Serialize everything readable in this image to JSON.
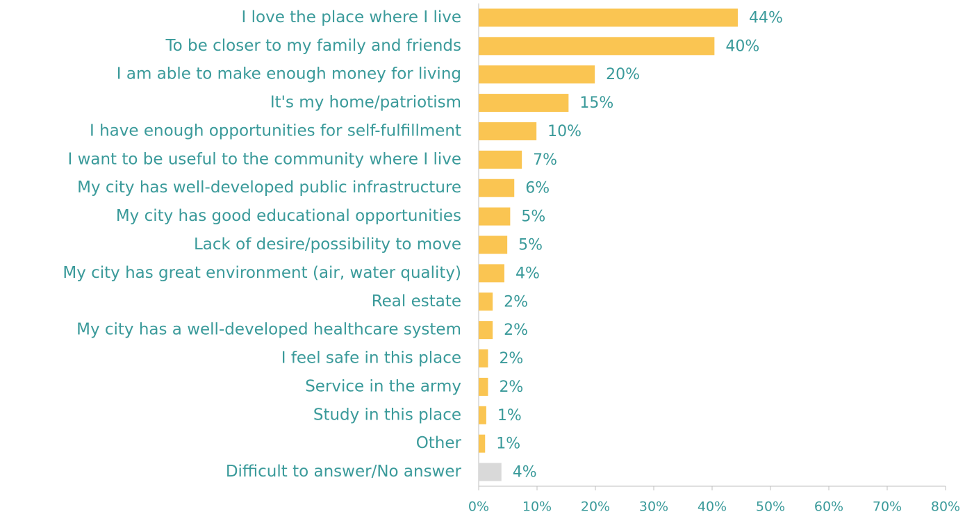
{
  "chart_data": {
    "type": "hbar",
    "categories": [
      "I love the place where I live",
      "To be closer to my family and friends",
      "I am able to make enough money for living",
      "It's my home/patriotism",
      "I have enough opportunities for self-fulfillment",
      "I want to be useful to the community where I live",
      "My city has well-developed public infrastructure",
      "My city has good educational opportunities",
      "Lack of desire/possibility to move",
      "My city has great environment (air, water quality)",
      "Real estate",
      "My city has a well-developed healthcare system",
      "I feel safe in this place",
      "Service in the army",
      "Study in this place",
      "Other",
      "Difficult to answer/No answer"
    ],
    "values": [
      44.4,
      40.4,
      19.9,
      15.4,
      9.9,
      7.4,
      6.1,
      5.4,
      4.9,
      4.4,
      2.4,
      2.4,
      1.6,
      1.6,
      1.3,
      1.1,
      3.9
    ],
    "value_labels": [
      "44%",
      "40%",
      "20%",
      "15%",
      "10%",
      "7%",
      "6%",
      "5%",
      "5%",
      "4%",
      "2%",
      "2%",
      "2%",
      "2%",
      "1%",
      "1%",
      "4%"
    ],
    "colors": [
      "#fac552",
      "#fac552",
      "#fac552",
      "#fac552",
      "#fac552",
      "#fac552",
      "#fac552",
      "#fac552",
      "#fac552",
      "#fac552",
      "#fac552",
      "#fac552",
      "#fac552",
      "#fac552",
      "#fac552",
      "#fac552",
      "#d9d9d9"
    ],
    "xlim": [
      0,
      80
    ],
    "xticks": [
      {
        "value": 0,
        "label": "0%"
      },
      {
        "value": 10,
        "label": "10%"
      },
      {
        "value": 20,
        "label": "20%"
      },
      {
        "value": 30,
        "label": "30%"
      },
      {
        "value": 40,
        "label": "40%"
      },
      {
        "value": 50,
        "label": "50%"
      },
      {
        "value": 60,
        "label": "60%"
      },
      {
        "value": 70,
        "label": "70%"
      },
      {
        "value": 80,
        "label": "80%"
      }
    ],
    "grid": false
  }
}
